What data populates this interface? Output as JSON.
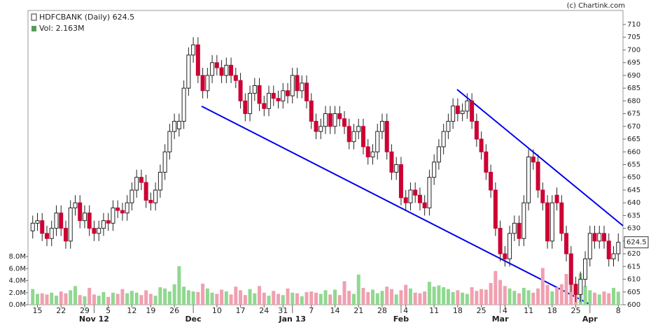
{
  "chart_data": {
    "type": "candlestick",
    "title": "HDFCBANK (Daily) 624.5",
    "subtitle": "Vol: 2.163M",
    "credit": "(c) Chartink.com",
    "last_price": 624.5,
    "series": [
      {
        "name": "HDFCBANK",
        "up_color": "#ffffff",
        "down_color": "#cc0033",
        "open": [
          629,
          632,
          633,
          628,
          626,
          630,
          636,
          630,
          625,
          638,
          640,
          633,
          636,
          630,
          628,
          630,
          633,
          632,
          638,
          637,
          636,
          640,
          645,
          650,
          648,
          641,
          640,
          645,
          652,
          660,
          668,
          669,
          672,
          685,
          698,
          702,
          690,
          684,
          690,
          695,
          693,
          690,
          694,
          690,
          688,
          680,
          675,
          683,
          686,
          679,
          677,
          683,
          681,
          680,
          684,
          682,
          690,
          684,
          687,
          680,
          672,
          668,
          670,
          675,
          670,
          675,
          673,
          670,
          664,
          668,
          670,
          662,
          658,
          660,
          668,
          672,
          660,
          652,
          655,
          642,
          640,
          645,
          643,
          640,
          638,
          650,
          656,
          662,
          668,
          672,
          678,
          675,
          676,
          680,
          672,
          665,
          660,
          652,
          645,
          630,
          620,
          618,
          628,
          632,
          626,
          640,
          658,
          656,
          645,
          640,
          625,
          643,
          640,
          628,
          620,
          608,
          604,
          610,
          618,
          628,
          625,
          628,
          625,
          618,
          620
        ],
        "high": [
          635,
          636,
          636,
          631,
          633,
          639,
          639,
          633,
          641,
          643,
          643,
          639,
          639,
          633,
          633,
          636,
          636,
          641,
          641,
          640,
          643,
          648,
          653,
          653,
          651,
          644,
          648,
          655,
          663,
          671,
          675,
          675,
          688,
          701,
          705,
          705,
          693,
          693,
          698,
          698,
          696,
          697,
          697,
          693,
          691,
          683,
          686,
          689,
          689,
          682,
          686,
          686,
          684,
          687,
          687,
          693,
          693,
          690,
          690,
          683,
          675,
          673,
          678,
          678,
          678,
          678,
          676,
          673,
          671,
          673,
          673,
          665,
          663,
          671,
          675,
          675,
          663,
          658,
          658,
          645,
          648,
          648,
          646,
          643,
          653,
          659,
          665,
          671,
          675,
          681,
          681,
          679,
          683,
          683,
          675,
          668,
          663,
          655,
          648,
          633,
          623,
          631,
          635,
          635,
          643,
          661,
          661,
          659,
          648,
          643,
          643,
          646,
          643,
          631,
          623,
          611,
          613,
          621,
          631,
          631,
          631,
          631,
          628,
          623,
          628
        ],
        "low": [
          626,
          629,
          625,
          623,
          623,
          627,
          627,
          622,
          622,
          635,
          630,
          630,
          627,
          625,
          625,
          627,
          629,
          629,
          634,
          633,
          633,
          637,
          642,
          645,
          638,
          637,
          637,
          642,
          649,
          657,
          665,
          666,
          669,
          682,
          695,
          687,
          681,
          681,
          687,
          690,
          687,
          687,
          687,
          685,
          677,
          672,
          672,
          680,
          676,
          674,
          674,
          678,
          677,
          677,
          679,
          679,
          681,
          681,
          677,
          669,
          665,
          665,
          667,
          667,
          667,
          670,
          667,
          661,
          661,
          665,
          659,
          655,
          655,
          657,
          665,
          657,
          649,
          649,
          639,
          637,
          637,
          640,
          637,
          635,
          635,
          647,
          653,
          659,
          665,
          669,
          672,
          672,
          673,
          669,
          662,
          657,
          649,
          642,
          627,
          617,
          615,
          615,
          625,
          623,
          623,
          637,
          653,
          642,
          637,
          622,
          622,
          637,
          625,
          617,
          605,
          601,
          601,
          607,
          615,
          622,
          622,
          622,
          615,
          615,
          617
        ],
        "close": [
          632,
          633,
          628,
          626,
          630,
          636,
          630,
          625,
          638,
          640,
          633,
          636,
          630,
          628,
          630,
          633,
          632,
          638,
          637,
          636,
          640,
          645,
          650,
          648,
          641,
          640,
          645,
          652,
          660,
          668,
          672,
          672,
          685,
          698,
          702,
          690,
          684,
          690,
          695,
          693,
          690,
          694,
          690,
          688,
          680,
          675,
          683,
          686,
          679,
          677,
          683,
          681,
          680,
          684,
          682,
          690,
          684,
          687,
          680,
          672,
          668,
          670,
          675,
          670,
          675,
          673,
          670,
          664,
          668,
          670,
          662,
          658,
          660,
          668,
          672,
          660,
          652,
          655,
          642,
          640,
          645,
          643,
          640,
          638,
          650,
          656,
          662,
          668,
          672,
          678,
          675,
          676,
          680,
          672,
          665,
          660,
          652,
          645,
          630,
          620,
          618,
          628,
          632,
          626,
          640,
          658,
          656,
          645,
          640,
          625,
          640,
          640,
          628,
          620,
          608,
          604,
          610,
          618,
          628,
          625,
          628,
          625,
          618,
          620,
          624.5
        ]
      },
      {
        "name": "Vol",
        "axis": "y2",
        "up_color": "#90d890",
        "down_color": "#f0a0b0",
        "values": [
          2.6,
          1.8,
          1.9,
          1.7,
          2.0,
          1.5,
          2.2,
          1.9,
          2.4,
          3.1,
          1.6,
          1.4,
          2.8,
          1.7,
          1.5,
          2.1,
          1.3,
          2.0,
          1.8,
          2.6,
          1.9,
          2.3,
          2.0,
          1.6,
          2.4,
          1.8,
          1.5,
          2.9,
          2.7,
          2.2,
          3.4,
          6.4,
          3.0,
          2.4,
          2.2,
          2.1,
          3.5,
          2.7,
          2.0,
          1.8,
          2.5,
          2.2,
          1.7,
          3.0,
          2.4,
          1.6,
          2.6,
          1.9,
          3.1,
          2.0,
          1.5,
          2.3,
          1.8,
          1.6,
          2.7,
          2.0,
          1.9,
          1.4,
          2.1,
          2.2,
          2.0,
          1.8,
          2.4,
          1.7,
          2.5,
          1.6,
          3.9,
          2.3,
          1.8,
          5.0,
          2.8,
          2.1,
          2.5,
          1.9,
          2.3,
          3.0,
          2.6,
          1.7,
          2.4,
          3.3,
          2.7,
          2.0,
          1.9,
          2.2,
          3.8,
          3.0,
          3.2,
          2.9,
          2.6,
          2.1,
          2.4,
          2.0,
          1.8,
          2.9,
          2.3,
          2.6,
          2.5,
          3.6,
          5.6,
          4.1,
          3.1,
          2.7,
          2.3,
          1.9,
          2.8,
          2.4,
          2.0,
          2.7,
          6.1,
          3.3,
          2.2,
          2.9,
          3.4,
          5.1,
          4.2,
          3.5,
          5.2,
          3.1,
          2.4,
          2.0,
          1.7,
          2.2,
          1.9,
          2.8,
          2.163
        ]
      }
    ],
    "xlim": [
      -1,
      125
    ],
    "xticks": [
      {
        "value": 1,
        "label": "15"
      },
      {
        "value": 6,
        "label": "22"
      },
      {
        "value": 11,
        "label": "29"
      },
      {
        "value": 16,
        "label": "5"
      },
      {
        "value": 21,
        "label": "12"
      },
      {
        "value": 25,
        "label": "19"
      },
      {
        "value": 30,
        "label": "26"
      },
      {
        "value": 39,
        "label": "10"
      },
      {
        "value": 44,
        "label": "17"
      },
      {
        "value": 49,
        "label": "24"
      },
      {
        "value": 53,
        "label": "31"
      },
      {
        "value": 59,
        "label": "7"
      },
      {
        "value": 64,
        "label": "14"
      },
      {
        "value": 69,
        "label": "21"
      },
      {
        "value": 74,
        "label": "28"
      },
      {
        "value": 79,
        "label": "4"
      },
      {
        "value": 85,
        "label": "11"
      },
      {
        "value": 90,
        "label": "18"
      },
      {
        "value": 95,
        "label": "25"
      },
      {
        "value": 100,
        "label": "4"
      },
      {
        "value": 105,
        "label": "11"
      },
      {
        "value": 110,
        "label": "18"
      },
      {
        "value": 115,
        "label": "25"
      },
      {
        "value": 124,
        "label": "8"
      }
    ],
    "month_ticks": [
      {
        "value": 13,
        "label": "Nov 12"
      },
      {
        "value": 34,
        "label": "Dec"
      },
      {
        "value": 55,
        "label": "Jan 13"
      },
      {
        "value": 78,
        "label": "Feb"
      },
      {
        "value": 99,
        "label": "Mar"
      },
      {
        "value": 118,
        "label": "Apr"
      }
    ],
    "ylim": [
      600,
      710
    ],
    "yticks": [
      600,
      605,
      610,
      615,
      620,
      625,
      630,
      635,
      640,
      645,
      650,
      655,
      660,
      665,
      670,
      675,
      680,
      685,
      690,
      695,
      700,
      705,
      710
    ],
    "y2lim": [
      0,
      8
    ],
    "y2ticks": [
      {
        "value": 0,
        "label": "0.0M"
      },
      {
        "value": 2,
        "label": "2.0M"
      },
      {
        "value": 4,
        "label": "4.0M"
      },
      {
        "value": 6,
        "label": "6.0M"
      },
      {
        "value": 8,
        "label": "8.0M"
      }
    ]
  }
}
